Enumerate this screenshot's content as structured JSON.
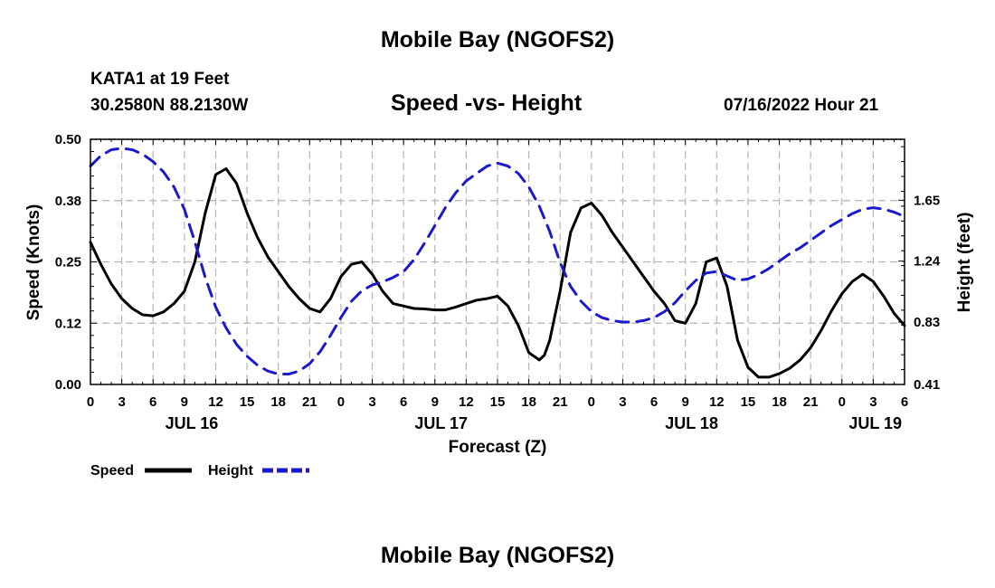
{
  "header": {
    "title": "Mobile Bay (NGOFS2)",
    "station": "KATA1 at 19 Feet",
    "coords": "30.2580N  88.2130W",
    "subtitle": "Speed -vs- Height",
    "datetime": "07/16/2022 Hour 21"
  },
  "footer": {
    "title": "Mobile Bay (NGOFS2)"
  },
  "colors": {
    "speed": "#000000",
    "height": "#1a1acc",
    "grid": "#b4b4b4"
  },
  "chart_data": {
    "type": "line",
    "title": "Speed -vs- Height",
    "xlabel": "Forecast (Z)",
    "ylabel_left": "Speed (Knots)",
    "ylabel_right": "Height (feet)",
    "x_range_hours": [
      0,
      78
    ],
    "x_ticks": [
      {
        "h": 0,
        "label": "0"
      },
      {
        "h": 3,
        "label": "3"
      },
      {
        "h": 6,
        "label": "6"
      },
      {
        "h": 9,
        "label": "9"
      },
      {
        "h": 12,
        "label": "12"
      },
      {
        "h": 15,
        "label": "15"
      },
      {
        "h": 18,
        "label": "18"
      },
      {
        "h": 21,
        "label": "21"
      },
      {
        "h": 24,
        "label": "0"
      },
      {
        "h": 27,
        "label": "3"
      },
      {
        "h": 30,
        "label": "6"
      },
      {
        "h": 33,
        "label": "9"
      },
      {
        "h": 36,
        "label": "12"
      },
      {
        "h": 39,
        "label": "15"
      },
      {
        "h": 42,
        "label": "18"
      },
      {
        "h": 45,
        "label": "21"
      },
      {
        "h": 48,
        "label": "0"
      },
      {
        "h": 51,
        "label": "3"
      },
      {
        "h": 54,
        "label": "6"
      },
      {
        "h": 57,
        "label": "9"
      },
      {
        "h": 60,
        "label": "12"
      },
      {
        "h": 63,
        "label": "15"
      },
      {
        "h": 66,
        "label": "18"
      },
      {
        "h": 69,
        "label": "21"
      },
      {
        "h": 72,
        "label": "0"
      },
      {
        "h": 75,
        "label": "3"
      },
      {
        "h": 78,
        "label": "6"
      }
    ],
    "date_labels": [
      {
        "h": 9.7,
        "label": "JUL 16"
      },
      {
        "h": 33.6,
        "label": "JUL 17"
      },
      {
        "h": 57.6,
        "label": "JUL 18"
      },
      {
        "h": 75.2,
        "label": "JUL 19"
      }
    ],
    "y_left": {
      "range": [
        0,
        0.5
      ],
      "ticks": [
        0.0,
        0.125,
        0.25,
        0.375,
        0.5
      ],
      "labels": [
        "0.00",
        "0.12",
        "0.25",
        "0.38",
        "0.50"
      ]
    },
    "y_right": {
      "range": [
        0.41,
        2.06
      ],
      "ticks": [
        0.41,
        0.83,
        1.24,
        1.65
      ],
      "labels": [
        "0.41",
        "0.83",
        "1.24",
        "1.65"
      ]
    },
    "series": [
      {
        "name": "Speed",
        "axis": "left",
        "style": "solid",
        "points": [
          [
            0,
            0.29
          ],
          [
            1,
            0.245
          ],
          [
            2,
            0.205
          ],
          [
            3,
            0.175
          ],
          [
            4,
            0.155
          ],
          [
            5,
            0.142
          ],
          [
            6,
            0.14
          ],
          [
            7,
            0.148
          ],
          [
            8,
            0.165
          ],
          [
            9,
            0.19
          ],
          [
            10,
            0.25
          ],
          [
            11,
            0.35
          ],
          [
            12,
            0.428
          ],
          [
            13,
            0.44
          ],
          [
            14,
            0.41
          ],
          [
            15,
            0.35
          ],
          [
            16,
            0.3
          ],
          [
            17,
            0.26
          ],
          [
            18,
            0.23
          ],
          [
            19,
            0.2
          ],
          [
            20,
            0.175
          ],
          [
            21,
            0.155
          ],
          [
            22,
            0.148
          ],
          [
            23,
            0.175
          ],
          [
            24,
            0.22
          ],
          [
            25,
            0.245
          ],
          [
            26,
            0.25
          ],
          [
            27,
            0.225
          ],
          [
            28,
            0.19
          ],
          [
            29,
            0.165
          ],
          [
            30,
            0.16
          ],
          [
            31,
            0.155
          ],
          [
            32,
            0.154
          ],
          [
            33,
            0.152
          ],
          [
            34,
            0.152
          ],
          [
            35,
            0.158
          ],
          [
            36,
            0.165
          ],
          [
            37,
            0.172
          ],
          [
            38,
            0.175
          ],
          [
            39,
            0.18
          ],
          [
            40,
            0.16
          ],
          [
            41,
            0.12
          ],
          [
            42,
            0.065
          ],
          [
            43,
            0.05
          ],
          [
            43.5,
            0.06
          ],
          [
            44,
            0.09
          ],
          [
            45,
            0.19
          ],
          [
            46,
            0.31
          ],
          [
            47,
            0.36
          ],
          [
            48,
            0.37
          ],
          [
            49,
            0.345
          ],
          [
            50,
            0.31
          ],
          [
            51,
            0.28
          ],
          [
            52,
            0.25
          ],
          [
            53,
            0.22
          ],
          [
            54,
            0.19
          ],
          [
            55,
            0.165
          ],
          [
            56,
            0.13
          ],
          [
            57,
            0.125
          ],
          [
            58,
            0.165
          ],
          [
            59,
            0.25
          ],
          [
            60,
            0.258
          ],
          [
            61,
            0.2
          ],
          [
            62,
            0.09
          ],
          [
            63,
            0.035
          ],
          [
            64,
            0.015
          ],
          [
            65,
            0.015
          ],
          [
            66,
            0.022
          ],
          [
            67,
            0.033
          ],
          [
            68,
            0.05
          ],
          [
            69,
            0.075
          ],
          [
            70,
            0.11
          ],
          [
            71,
            0.15
          ],
          [
            72,
            0.185
          ],
          [
            73,
            0.21
          ],
          [
            74,
            0.225
          ],
          [
            75,
            0.21
          ],
          [
            76,
            0.18
          ],
          [
            77,
            0.145
          ],
          [
            78,
            0.12
          ]
        ]
      },
      {
        "name": "Height",
        "axis": "right",
        "style": "dashed",
        "points": [
          [
            0,
            1.88
          ],
          [
            1,
            1.95
          ],
          [
            2,
            1.99
          ],
          [
            3,
            2.0
          ],
          [
            4,
            1.99
          ],
          [
            5,
            1.96
          ],
          [
            6,
            1.91
          ],
          [
            7,
            1.84
          ],
          [
            8,
            1.74
          ],
          [
            9,
            1.59
          ],
          [
            10,
            1.37
          ],
          [
            11,
            1.13
          ],
          [
            12,
            0.93
          ],
          [
            13,
            0.79
          ],
          [
            14,
            0.68
          ],
          [
            15,
            0.6
          ],
          [
            16,
            0.54
          ],
          [
            17,
            0.5
          ],
          [
            18,
            0.48
          ],
          [
            19,
            0.48
          ],
          [
            20,
            0.5
          ],
          [
            21,
            0.55
          ],
          [
            22,
            0.63
          ],
          [
            23,
            0.74
          ],
          [
            24,
            0.86
          ],
          [
            25,
            0.97
          ],
          [
            26,
            1.04
          ],
          [
            27,
            1.08
          ],
          [
            28,
            1.1
          ],
          [
            29,
            1.13
          ],
          [
            30,
            1.17
          ],
          [
            31,
            1.25
          ],
          [
            32,
            1.36
          ],
          [
            33,
            1.48
          ],
          [
            34,
            1.6
          ],
          [
            35,
            1.7
          ],
          [
            36,
            1.78
          ],
          [
            37,
            1.83
          ],
          [
            38,
            1.88
          ],
          [
            39,
            1.9
          ],
          [
            40,
            1.88
          ],
          [
            41,
            1.83
          ],
          [
            42,
            1.74
          ],
          [
            43,
            1.61
          ],
          [
            44,
            1.44
          ],
          [
            45,
            1.23
          ],
          [
            46,
            1.07
          ],
          [
            47,
            0.97
          ],
          [
            48,
            0.9
          ],
          [
            49,
            0.86
          ],
          [
            50,
            0.84
          ],
          [
            51,
            0.83
          ],
          [
            52,
            0.83
          ],
          [
            53,
            0.84
          ],
          [
            54,
            0.86
          ],
          [
            55,
            0.9
          ],
          [
            56,
            0.96
          ],
          [
            57,
            1.04
          ],
          [
            58,
            1.11
          ],
          [
            59,
            1.16
          ],
          [
            60,
            1.17
          ],
          [
            61,
            1.14
          ],
          [
            62,
            1.11
          ],
          [
            63,
            1.12
          ],
          [
            64,
            1.15
          ],
          [
            65,
            1.19
          ],
          [
            66,
            1.24
          ],
          [
            67,
            1.29
          ],
          [
            68,
            1.33
          ],
          [
            69,
            1.38
          ],
          [
            70,
            1.43
          ],
          [
            71,
            1.48
          ],
          [
            72,
            1.52
          ],
          [
            73,
            1.56
          ],
          [
            74,
            1.59
          ],
          [
            75,
            1.6
          ],
          [
            76,
            1.59
          ],
          [
            77,
            1.57
          ],
          [
            78,
            1.54
          ]
        ]
      }
    ],
    "legend": [
      {
        "label": "Speed",
        "style": "solid"
      },
      {
        "label": "Height",
        "style": "dashed"
      }
    ]
  }
}
